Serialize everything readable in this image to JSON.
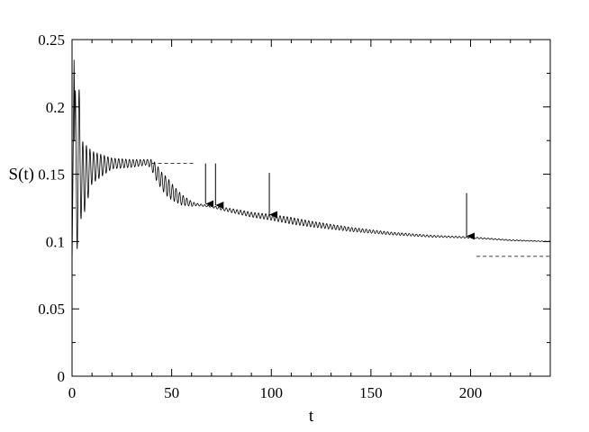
{
  "chart_data": {
    "type": "line",
    "title": "",
    "xlabel": "t",
    "ylabel": "S(t)",
    "xlim": [
      0,
      240
    ],
    "ylim": [
      0,
      0.25
    ],
    "xticks": [
      0,
      50,
      100,
      150,
      200
    ],
    "xtick_labels": [
      "0",
      "50",
      "100",
      "150",
      "200"
    ],
    "yticks": [
      0,
      0.05,
      0.1,
      0.15,
      0.2,
      0.25
    ],
    "ytick_labels": [
      "0",
      "0.05",
      "0.1",
      "0.15",
      "0.2",
      "0.25"
    ],
    "grid": false,
    "legend": "none",
    "series": [
      {
        "style": "solid oscillating",
        "description_points": [
          [
            0.0,
            0.08
          ],
          [
            1.0,
            0.235
          ],
          [
            2.0,
            0.11
          ],
          [
            3.0,
            0.175
          ],
          [
            5.0,
            0.145
          ],
          [
            10.0,
            0.155
          ],
          [
            20.0,
            0.158
          ],
          [
            30.0,
            0.158
          ],
          [
            38.0,
            0.159
          ],
          [
            40.0,
            0.157
          ],
          [
            45.0,
            0.145
          ],
          [
            50.0,
            0.137
          ],
          [
            55.0,
            0.131
          ],
          [
            60.0,
            0.128
          ],
          [
            65.0,
            0.127
          ],
          [
            70.0,
            0.126
          ],
          [
            80.0,
            0.123
          ],
          [
            90.0,
            0.12
          ],
          [
            100.0,
            0.118
          ],
          [
            120.0,
            0.113
          ],
          [
            140.0,
            0.109
          ],
          [
            160.0,
            0.106
          ],
          [
            180.0,
            0.104
          ],
          [
            200.0,
            0.103
          ],
          [
            220.0,
            0.101
          ],
          [
            240.0,
            0.1
          ]
        ],
        "oscillation_envelope": [
          [
            0.0,
            0.08
          ],
          [
            2.0,
            0.065
          ],
          [
            5.0,
            0.03
          ],
          [
            10.0,
            0.012
          ],
          [
            20.0,
            0.004
          ],
          [
            38.0,
            0.002
          ],
          [
            42.0,
            0.006
          ],
          [
            48.0,
            0.007
          ],
          [
            55.0,
            0.004
          ],
          [
            62.0,
            0.001
          ],
          [
            68.0,
            0.0005
          ],
          [
            80.0,
            0.0015
          ],
          [
            95.0,
            0.002
          ],
          [
            110.0,
            0.0025
          ],
          [
            130.0,
            0.0018
          ],
          [
            160.0,
            0.001
          ],
          [
            190.0,
            0.0006
          ],
          [
            240.0,
            0.0002
          ]
        ]
      }
    ],
    "reference_lines": [
      {
        "style": "dashed",
        "x": [
          40,
          61
        ],
        "y": 0.158
      },
      {
        "style": "dashed",
        "x": [
          203,
          240
        ],
        "y": 0.089
      }
    ],
    "arrows": [
      {
        "x": 67,
        "y_from": 0.158,
        "y_to": 0.128
      },
      {
        "x": 72,
        "y_from": 0.158,
        "y_to": 0.127
      },
      {
        "x": 99,
        "y_from": 0.151,
        "y_to": 0.12
      },
      {
        "x": 198,
        "y_from": 0.136,
        "y_to": 0.104
      }
    ]
  }
}
